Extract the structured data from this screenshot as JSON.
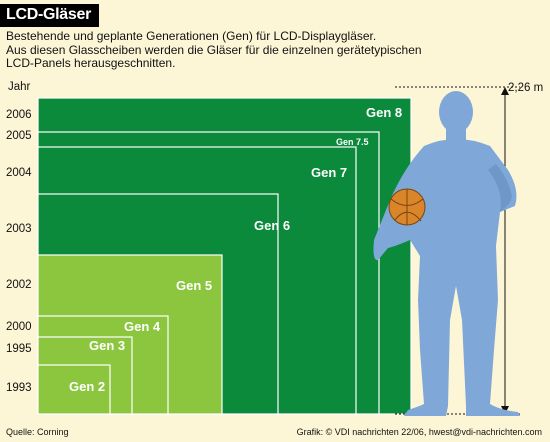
{
  "title": "LCD-Gläser",
  "subtitle": "Bestehende und geplante Generationen (Gen) für LCD-Displaygläser.\nAus diesen Glasscheiben werden die Gläser für die einzelnen gerätetypischen LCD-Panels herausgeschnitten.",
  "footer": {
    "source": "Quelle:  Corning",
    "credit": "Grafik: © VDI nachrichten  22/06, hwest@vdi-nachrichten.com"
  },
  "colors": {
    "background": "#fdf6d6",
    "dark_green": "#0a8a3a",
    "light_green": "#8cc63f",
    "person_blue": "#7fa8d8",
    "ball_orange": "#d9862a"
  },
  "icons": [
    "human-silhouette-icon",
    "basketball-icon"
  ],
  "chart_data": {
    "type": "nested-rectangles",
    "ylabel": "Jahr",
    "height_annotation": "2,26 m",
    "generations": [
      {
        "name": "Gen 2",
        "year": "1993",
        "tier": "light"
      },
      {
        "name": "Gen 3",
        "year": "1995",
        "tier": "light"
      },
      {
        "name": "Gen 4",
        "year": "2000",
        "tier": "light"
      },
      {
        "name": "Gen 5",
        "year": "2002",
        "tier": "light"
      },
      {
        "name": "Gen 6",
        "year": "2003",
        "tier": "dark"
      },
      {
        "name": "Gen 7",
        "year": "2004",
        "tier": "dark"
      },
      {
        "name": "Gen 7.5",
        "year": "2005",
        "tier": "dark"
      },
      {
        "name": "Gen 8",
        "year": "2006",
        "tier": "dark"
      }
    ]
  }
}
